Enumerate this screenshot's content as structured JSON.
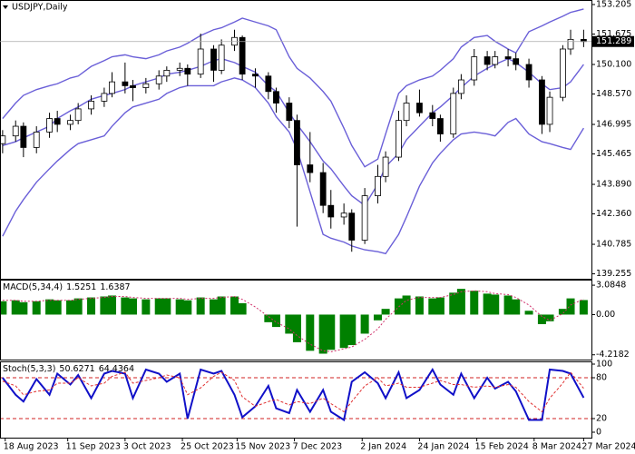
{
  "chart_data": [
    {
      "type": "candlestick",
      "title": "USDJPY,Daily",
      "x": [
        "2023-08-17",
        "2023-08-22",
        "2023-08-25",
        "2023-08-30",
        "2023-09-04",
        "2023-09-07",
        "2023-09-12",
        "2023-09-15",
        "2023-09-20",
        "2023-09-25",
        "2023-09-28",
        "2023-10-03",
        "2023-10-06",
        "2023-10-11",
        "2023-10-16",
        "2023-10-19",
        "2023-10-24",
        "2023-10-27",
        "2023-11-01",
        "2023-11-06",
        "2023-11-09",
        "2023-11-14",
        "2023-11-17",
        "2023-11-22",
        "2023-11-27",
        "2023-11-30",
        "2023-12-05",
        "2023-12-08",
        "2023-12-13",
        "2023-12-18",
        "2023-12-21",
        "2023-12-26",
        "2023-12-29",
        "2024-01-03",
        "2024-01-08",
        "2024-01-11",
        "2024-01-16",
        "2024-01-19",
        "2024-01-24",
        "2024-01-29",
        "2024-02-01",
        "2024-02-06",
        "2024-02-09",
        "2024-02-14",
        "2024-02-19",
        "2024-02-22",
        "2024-02-27",
        "2024-03-01",
        "2024-03-06",
        "2024-03-11",
        "2024-03-14",
        "2024-03-19",
        "2024-03-22",
        "2024-03-27"
      ],
      "open": [
        146.0,
        146.4,
        146.9,
        145.8,
        146.6,
        147.3,
        147.0,
        147.2,
        147.8,
        148.2,
        148.6,
        149.2,
        149.0,
        148.9,
        149.1,
        149.5,
        149.8,
        149.9,
        149.6,
        150.9,
        149.8,
        151.1,
        151.5,
        149.6,
        149.5,
        148.7,
        148.1,
        147.2,
        144.9,
        144.5,
        142.8,
        142.2,
        142.4,
        141.0,
        143.3,
        144.3,
        145.3,
        147.2,
        148.1,
        147.6,
        147.3,
        146.5,
        148.6,
        149.3,
        150.5,
        150.1,
        150.5,
        150.4,
        150.1,
        149.3,
        147.0,
        148.4,
        150.9,
        151.4
      ],
      "high": [
        146.7,
        147.2,
        147.1,
        146.9,
        147.6,
        147.7,
        147.5,
        148.1,
        148.5,
        148.9,
        149.7,
        150.2,
        149.3,
        149.4,
        149.8,
        150.0,
        150.2,
        150.1,
        151.7,
        151.1,
        151.4,
        151.9,
        151.6,
        149.9,
        149.7,
        148.9,
        148.4,
        147.5,
        146.6,
        145.0,
        143.6,
        142.9,
        142.6,
        143.7,
        144.9,
        145.6,
        147.7,
        148.5,
        148.8,
        148.0,
        147.5,
        148.9,
        149.6,
        150.9,
        150.8,
        150.8,
        150.9,
        150.7,
        150.4,
        149.5,
        148.7,
        151.1,
        151.9,
        151.9
      ],
      "low": [
        145.5,
        146.1,
        145.3,
        145.5,
        146.3,
        146.6,
        146.7,
        147.0,
        147.5,
        147.9,
        148.4,
        148.6,
        148.2,
        148.6,
        148.8,
        149.2,
        149.5,
        149.0,
        149.4,
        149.2,
        149.6,
        150.8,
        149.3,
        148.9,
        148.3,
        147.6,
        146.8,
        141.7,
        144.0,
        142.4,
        141.6,
        141.8,
        140.4,
        140.8,
        142.9,
        144.0,
        145.1,
        146.9,
        147.4,
        146.9,
        146.1,
        146.3,
        148.3,
        149.0,
        149.8,
        149.9,
        150.0,
        149.8,
        148.9,
        146.5,
        146.6,
        148.2,
        150.6,
        151.0
      ],
      "close": [
        146.4,
        146.9,
        145.8,
        146.6,
        147.3,
        147.0,
        147.2,
        147.8,
        148.2,
        148.6,
        149.2,
        149.0,
        148.9,
        149.1,
        149.5,
        149.8,
        149.9,
        149.6,
        150.9,
        149.8,
        151.1,
        151.5,
        149.6,
        149.5,
        148.7,
        148.1,
        147.2,
        144.9,
        144.5,
        142.8,
        142.2,
        142.4,
        141.0,
        143.3,
        144.3,
        145.3,
        147.2,
        148.1,
        147.6,
        147.3,
        146.5,
        148.6,
        149.3,
        150.5,
        150.1,
        150.5,
        150.4,
        150.1,
        149.3,
        147.0,
        148.4,
        150.9,
        151.4,
        151.289
      ],
      "up_color": "#ffffff",
      "down_color": "#000000",
      "series": [
        {
          "color": "#6a5fd8",
          "values": [
            147.3,
            148.1,
            148.5,
            148.8,
            149.0,
            149.1,
            149.4,
            149.5,
            150.0,
            150.3,
            150.5,
            150.6,
            150.5,
            150.4,
            150.6,
            150.8,
            151.0,
            151.2,
            151.6,
            151.9,
            152.0,
            152.3,
            152.5,
            152.3,
            152.1,
            151.9,
            150.5,
            149.9,
            149.4,
            148.7,
            148.2,
            146.8,
            145.9,
            144.8,
            145.2,
            146.5,
            148.6,
            149.0,
            149.3,
            149.5,
            149.8,
            150.4,
            151.0,
            151.5,
            151.6,
            151.3,
            150.9,
            150.7,
            151.8,
            152.1,
            152.3,
            152.6,
            152.8,
            152.97
          ]
        },
        {
          "color": "#6a5fd8",
          "values": [
            145.9,
            146.1,
            146.3,
            146.6,
            146.9,
            147.3,
            147.7,
            147.9,
            148.3,
            148.5,
            148.6,
            148.8,
            149.0,
            149.2,
            149.4,
            149.6,
            149.7,
            149.8,
            150.0,
            150.3,
            150.4,
            150.2,
            150.0,
            149.7,
            149.0,
            148.7,
            147.6,
            147.0,
            146.1,
            145.1,
            144.7,
            143.8,
            143.3,
            142.8,
            143.9,
            144.8,
            145.5,
            146.2,
            146.9,
            147.6,
            147.9,
            148.5,
            148.9,
            149.5,
            149.9,
            150.1,
            150.4,
            150.2,
            149.7,
            149.1,
            148.8,
            148.9,
            149.2,
            150.1
          ]
        },
        {
          "color": "#6a5fd8",
          "values": [
            141.2,
            142.5,
            143.1,
            144.0,
            144.7,
            145.1,
            145.7,
            146.0,
            146.2,
            146.4,
            146.9,
            147.6,
            147.9,
            148.1,
            148.3,
            148.6,
            148.9,
            149.0,
            149.0,
            149.0,
            149.2,
            149.4,
            149.3,
            148.9,
            148.1,
            147.4,
            146.6,
            145.7,
            143.5,
            141.3,
            141.1,
            140.9,
            140.7,
            140.5,
            140.4,
            140.3,
            141.3,
            142.2,
            143.8,
            145.0,
            145.5,
            146.2,
            146.5,
            146.6,
            146.5,
            146.4,
            147.1,
            147.3,
            146.5,
            146.1,
            146.0,
            145.8,
            145.7,
            146.8
          ]
        }
      ],
      "xlim": [
        "2023-08-16",
        "2024-03-30"
      ],
      "ylim": [
        139.0,
        153.44
      ],
      "yticks": [
        153.205,
        151.675,
        {
          "value": 150.1,
          "label": "150.100"
        },
        {
          "value": 148.57,
          "label": "148.570"
        },
        146.995,
        145.465,
        {
          "value": 143.89,
          "label": "143.890"
        },
        {
          "value": 142.36,
          "label": "142.360"
        },
        140.785,
        139.255
      ]
    },
    {
      "type": "macd",
      "title": "MACD(5,34,4)",
      "series": [
        {
          "type": "bar",
          "color": "#008000",
          "values": [
            1.4,
            1.5,
            1.3,
            1.4,
            1.6,
            1.5,
            1.5,
            1.7,
            1.8,
            1.9,
            2.0,
            1.8,
            1.7,
            1.6,
            1.7,
            1.7,
            1.6,
            1.5,
            1.8,
            1.6,
            1.9,
            1.9,
            1.2,
            0.0,
            -0.8,
            -1.3,
            -2.0,
            -2.9,
            -3.8,
            -4.1,
            -3.7,
            -3.5,
            -3.2,
            -2.0,
            -0.6,
            0.6,
            1.7,
            2.0,
            1.9,
            1.7,
            1.8,
            2.3,
            2.7,
            2.5,
            2.2,
            2.1,
            2.0,
            1.6,
            0.4,
            -1.0,
            -0.7,
            0.6,
            1.7,
            1.5251
          ]
        },
        {
          "type": "line",
          "color": "#d0306a",
          "dash": true,
          "values": [
            1.5,
            1.5,
            1.4,
            1.4,
            1.5,
            1.5,
            1.5,
            1.6,
            1.7,
            1.8,
            1.9,
            1.9,
            1.8,
            1.7,
            1.7,
            1.7,
            1.7,
            1.6,
            1.7,
            1.7,
            1.8,
            1.9,
            1.6,
            0.8,
            -0.2,
            -0.8,
            -1.5,
            -2.2,
            -3.1,
            -3.8,
            -3.9,
            -3.6,
            -3.4,
            -2.6,
            -1.5,
            -0.5,
            0.8,
            1.5,
            1.8,
            1.8,
            1.8,
            2.1,
            2.4,
            2.5,
            2.4,
            2.2,
            2.1,
            1.8,
            1.0,
            -0.2,
            -0.6,
            0.1,
            1.0,
            1.6387
          ]
        }
      ],
      "ylim": [
        -4.72,
        3.57
      ],
      "yticks": [
        3.0848,
        {
          "value": 0,
          "label": "0.00"
        },
        -4.2182
      ]
    },
    {
      "type": "stochastic",
      "title": "Stoch(5,3,3)",
      "series": [
        {
          "type": "line",
          "color": "#1010c8",
          "values": [
            80,
            55,
            45,
            78,
            55,
            86,
            70,
            84,
            50,
            86,
            90,
            86,
            50,
            92,
            86,
            74,
            86,
            20,
            92,
            86,
            90,
            55,
            22,
            38,
            68,
            35,
            28,
            62,
            30,
            62,
            30,
            18,
            74,
            88,
            72,
            50,
            88,
            50,
            62,
            92,
            70,
            55,
            86,
            50,
            80,
            64,
            74,
            60,
            18,
            18,
            92,
            90,
            86,
            50.6271
          ]
        },
        {
          "type": "line",
          "color": "#e03030",
          "dash": true,
          "values": [
            75,
            68,
            55,
            60,
            62,
            72,
            72,
            80,
            68,
            72,
            82,
            88,
            72,
            76,
            80,
            84,
            80,
            55,
            65,
            82,
            88,
            76,
            52,
            38,
            45,
            48,
            40,
            45,
            42,
            50,
            42,
            30,
            45,
            68,
            80,
            68,
            72,
            66,
            66,
            72,
            76,
            70,
            70,
            66,
            68,
            66,
            70,
            66,
            45,
            30,
            50,
            72,
            88,
            64.4364
          ]
        }
      ],
      "levels": [
        80,
        20
      ],
      "level_color": "#d02020",
      "ylim": [
        0,
        100
      ],
      "yticks": [
        100,
        80,
        20,
        0
      ],
      "xticks": [
        {
          "value": "2023-08-18",
          "label": "18 Aug 2023"
        },
        {
          "value": "2023-09-11",
          "label": "11 Sep 2023"
        },
        {
          "value": "2023-10-03",
          "label": "3 Oct 2023"
        },
        {
          "value": "2023-10-25",
          "label": "25 Oct 2023"
        },
        {
          "value": "2023-11-15",
          "label": "15 Nov 2023"
        },
        {
          "value": "2023-12-07",
          "label": "7 Dec 2023"
        },
        {
          "value": "2024-01-02",
          "label": "2 Jan 2024"
        },
        {
          "value": "2024-01-24",
          "label": "24 Jan 2024"
        },
        {
          "value": "2024-02-15",
          "label": "15 Feb 2024"
        },
        {
          "value": "2024-03-08",
          "label": "8 Mar 2024"
        },
        {
          "value": "2024-03-27",
          "label": "27 Mar 2024"
        }
      ]
    }
  ]
}
